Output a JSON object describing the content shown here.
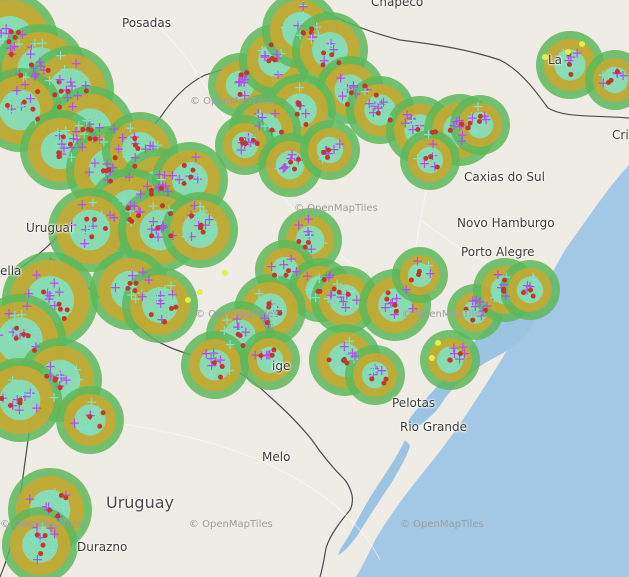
{
  "map": {
    "attribution_text": "© OpenMapTiles",
    "colors": {
      "land": "#eeece4",
      "ocean": "#a3c8e6",
      "lagoon": "#9bc3e2",
      "border": "#4d4d4d",
      "storm_outer": "#5cb85c",
      "storm_mid": "#c8a832",
      "storm_cloud": "#7fe3c8",
      "lightning_plus": "#b44df0",
      "lightning_cg": "#c0392b",
      "flash_yellow": "#dff24a"
    },
    "labels": [
      {
        "id": "posadas",
        "text": "Posadas"
      },
      {
        "id": "chapeco",
        "text": "Chapecó"
      },
      {
        "id": "uruguaiana",
        "text": "Uruguai"
      },
      {
        "id": "caxias",
        "text": "Caxias do Sul"
      },
      {
        "id": "novo_hamburgo",
        "text": "Novo Hamburgo"
      },
      {
        "id": "porto_alegre",
        "text": "Porto Alegre"
      },
      {
        "id": "pelotas",
        "text": "Pelotas"
      },
      {
        "id": "rio_grande",
        "text": "Rio Grande"
      },
      {
        "id": "melo",
        "text": "Melo"
      },
      {
        "id": "uruguay",
        "text": "Uruguay"
      },
      {
        "id": "durazno",
        "text": "Durazno"
      },
      {
        "id": "bella",
        "text": "ella"
      },
      {
        "id": "cri",
        "text": "Cri"
      },
      {
        "id": "la",
        "text": "La"
      },
      {
        "id": "ige",
        "text": "ige"
      }
    ]
  }
}
